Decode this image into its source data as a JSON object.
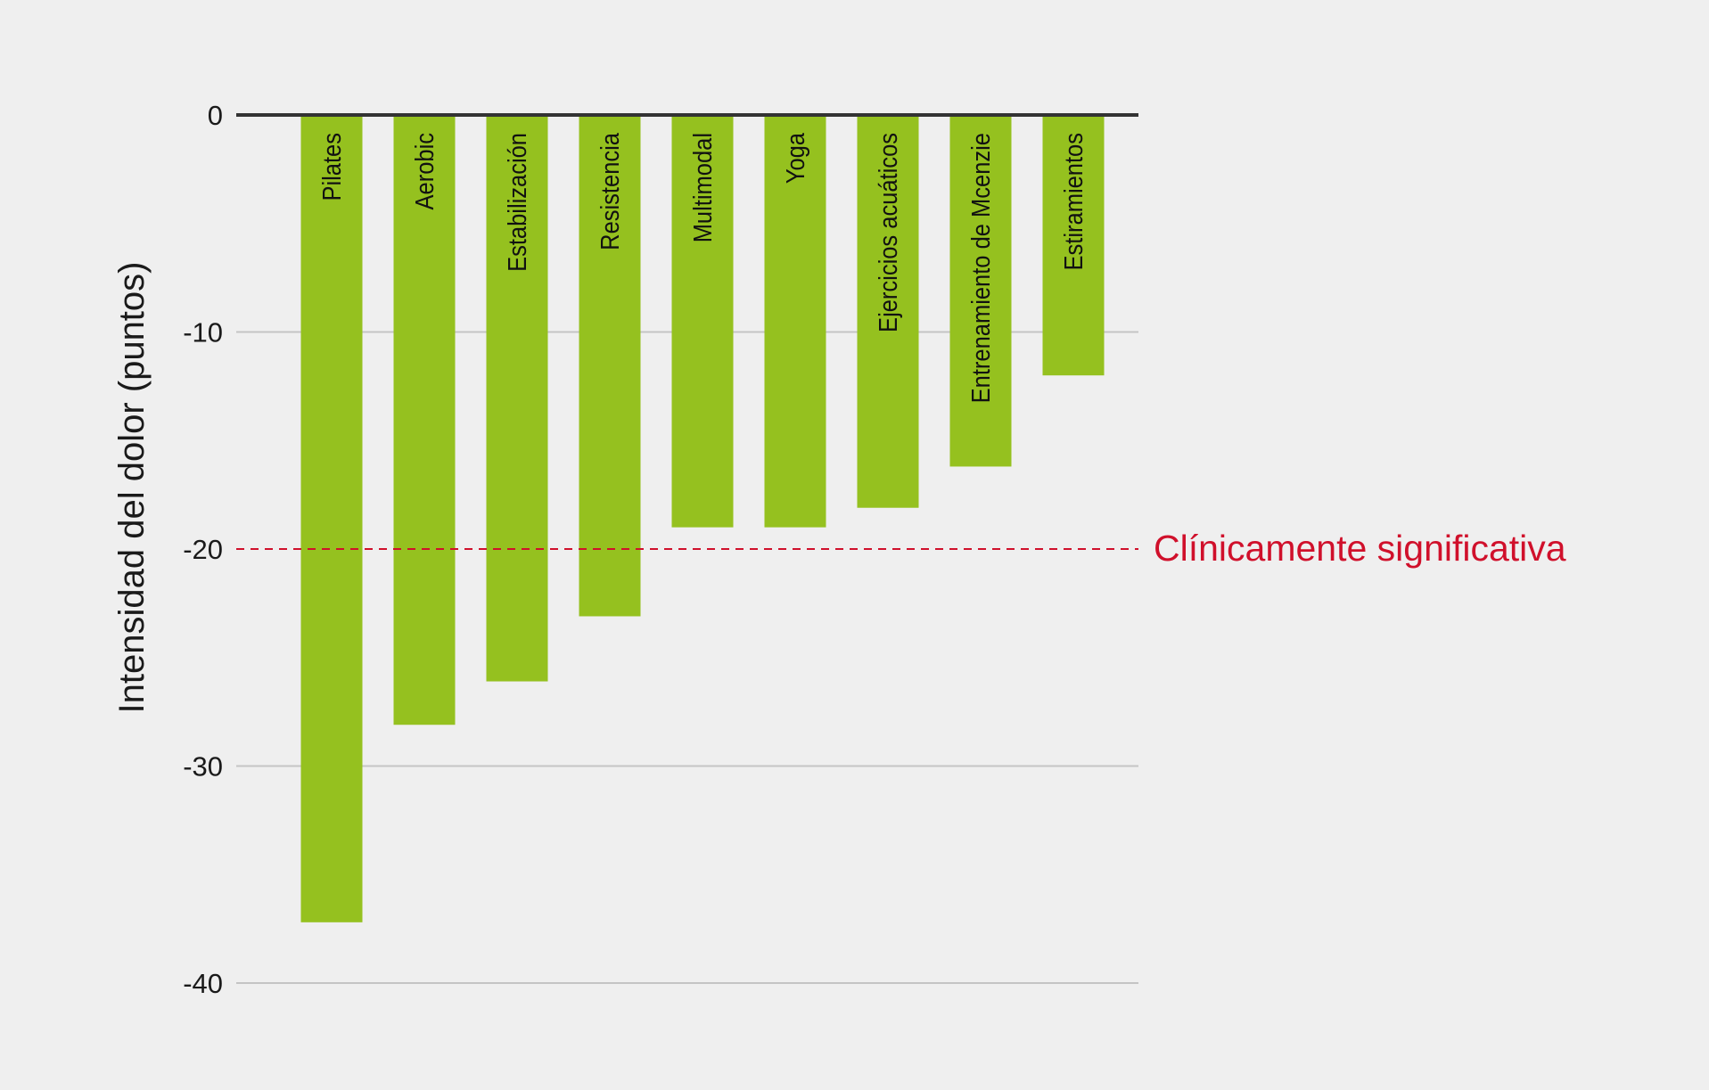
{
  "chart_data": {
    "type": "bar",
    "ylabel": "Intensidad del dolor (puntos)",
    "ylim": [
      -40,
      0
    ],
    "yticks": [
      0,
      -10,
      -20,
      -30,
      -40
    ],
    "categories": [
      "Pilates",
      "Aerobic",
      "Estabilización",
      "Resistencia",
      "Multimodal",
      "Yoga",
      "Ejercicios acuáticos",
      "Entrenamiento de Mcenzie",
      "Estiramientos"
    ],
    "values": [
      -37.2,
      -28.1,
      -26.1,
      -23.1,
      -19.0,
      -19.0,
      -18.1,
      -16.2,
      -12.0
    ],
    "grid": true,
    "reference_line": {
      "value": -20,
      "label": "Clínicamente significativa",
      "color": "#d0102b"
    },
    "colors": {
      "bar": "#95c11f",
      "zero_line": "#333333",
      "grid": "#c4c4c4"
    }
  }
}
